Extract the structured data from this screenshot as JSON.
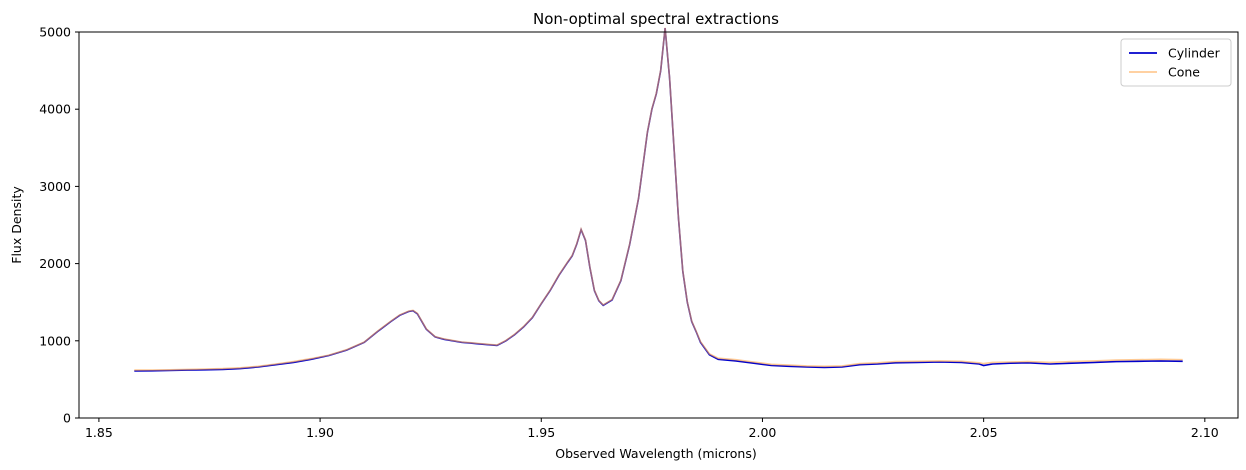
{
  "chart_data": {
    "type": "line",
    "title": "Non-optimal spectral extractions",
    "xlabel": "Observed Wavelength (microns)",
    "ylabel": "Flux Density",
    "xlim": [
      1.8455,
      2.1075
    ],
    "ylim": [
      0,
      5000
    ],
    "xticks": [
      1.85,
      1.9,
      1.95,
      2.0,
      2.05,
      2.1
    ],
    "xtick_labels": [
      "1.85",
      "1.90",
      "1.95",
      "2.00",
      "2.05",
      "2.10"
    ],
    "yticks": [
      0,
      1000,
      2000,
      3000,
      4000,
      5000
    ],
    "ytick_labels": [
      "0",
      "1000",
      "2000",
      "3000",
      "4000",
      "5000"
    ],
    "grid": false,
    "legend_position": "top-right",
    "x": [
      1.858,
      1.862,
      1.866,
      1.87,
      1.874,
      1.878,
      1.882,
      1.886,
      1.89,
      1.894,
      1.898,
      1.902,
      1.906,
      1.91,
      1.913,
      1.916,
      1.918,
      1.92,
      1.921,
      1.922,
      1.924,
      1.926,
      1.928,
      1.93,
      1.932,
      1.934,
      1.936,
      1.938,
      1.94,
      1.942,
      1.944,
      1.946,
      1.948,
      1.95,
      1.952,
      1.954,
      1.956,
      1.957,
      1.958,
      1.959,
      1.96,
      1.961,
      1.962,
      1.963,
      1.964,
      1.966,
      1.968,
      1.97,
      1.972,
      1.974,
      1.975,
      1.976,
      1.977,
      1.978,
      1.979,
      1.98,
      1.981,
      1.982,
      1.983,
      1.984,
      1.985,
      1.986,
      1.988,
      1.99,
      1.994,
      1.998,
      2.002,
      2.006,
      2.01,
      2.014,
      2.018,
      2.022,
      2.026,
      2.03,
      2.035,
      2.04,
      2.045,
      2.049,
      2.05,
      2.052,
      2.056,
      2.06,
      2.065,
      2.07,
      2.075,
      2.08,
      2.085,
      2.09,
      2.095
    ],
    "series": [
      {
        "name": "Cylinder",
        "color": "#0000cc",
        "values": [
          610,
          612,
          615,
          620,
          625,
          630,
          640,
          660,
          690,
          720,
          760,
          810,
          880,
          980,
          1120,
          1250,
          1330,
          1380,
          1390,
          1350,
          1150,
          1050,
          1020,
          1000,
          980,
          970,
          960,
          950,
          940,
          1000,
          1080,
          1180,
          1300,
          1480,
          1650,
          1850,
          2020,
          2100,
          2250,
          2440,
          2300,
          1950,
          1650,
          1520,
          1460,
          1530,
          1780,
          2250,
          2850,
          3700,
          4000,
          4200,
          4500,
          5050,
          4400,
          3500,
          2600,
          1900,
          1500,
          1250,
          1120,
          980,
          820,
          760,
          740,
          710,
          680,
          670,
          660,
          655,
          660,
          690,
          700,
          715,
          720,
          725,
          720,
          700,
          680,
          700,
          710,
          715,
          700,
          710,
          720,
          730,
          735,
          740,
          735
        ]
      },
      {
        "name": "Cone",
        "color": "#ffa64d",
        "values": [
          620,
          622,
          625,
          630,
          635,
          640,
          650,
          670,
          700,
          730,
          770,
          815,
          885,
          985,
          1125,
          1255,
          1335,
          1385,
          1395,
          1355,
          1155,
          1055,
          1025,
          1005,
          985,
          975,
          965,
          955,
          945,
          1005,
          1085,
          1185,
          1305,
          1485,
          1655,
          1855,
          2025,
          2105,
          2255,
          2445,
          2305,
          1955,
          1655,
          1525,
          1465,
          1535,
          1785,
          2255,
          2855,
          3705,
          4005,
          4205,
          4505,
          5055,
          4405,
          3505,
          2605,
          1905,
          1505,
          1255,
          1125,
          990,
          830,
          775,
          755,
          725,
          695,
          685,
          675,
          670,
          675,
          705,
          715,
          730,
          735,
          740,
          735,
          715,
          705,
          720,
          725,
          730,
          720,
          730,
          740,
          750,
          755,
          760,
          755
        ]
      }
    ]
  }
}
